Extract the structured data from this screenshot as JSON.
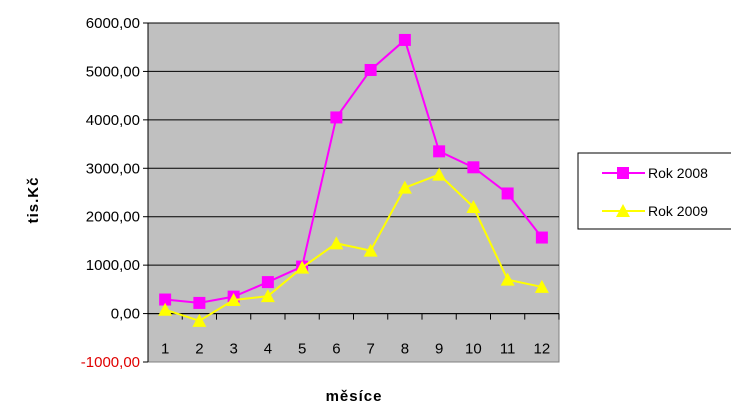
{
  "chart_data": {
    "type": "line",
    "title": "",
    "xlabel": "měsíce",
    "ylabel": "tis.Kč",
    "categories": [
      "1",
      "2",
      "3",
      "4",
      "5",
      "6",
      "7",
      "8",
      "9",
      "10",
      "11",
      "12"
    ],
    "y_ticks": [
      -1000,
      0,
      1000,
      2000,
      3000,
      4000,
      5000,
      6000
    ],
    "y_tick_labels": [
      "-1000,00",
      "0,00",
      "1000,00",
      "2000,00",
      "3000,00",
      "4000,00",
      "5000,00",
      "6000,00"
    ],
    "ylim": [
      -1000,
      6000
    ],
    "grid": true,
    "plot_background": "#c0c0c0",
    "legend_position": "right",
    "series": [
      {
        "name": "Rok 2008",
        "color": "#ff00ff",
        "marker": "square",
        "values": [
          290,
          220,
          350,
          650,
          970,
          4050,
          5030,
          5650,
          3350,
          3020,
          2480,
          1570
        ]
      },
      {
        "name": "Rok 2009",
        "color": "#ffff00",
        "marker": "triangle",
        "values": [
          80,
          -150,
          280,
          360,
          950,
          1450,
          1300,
          2600,
          2870,
          2200,
          700,
          550
        ]
      }
    ]
  }
}
